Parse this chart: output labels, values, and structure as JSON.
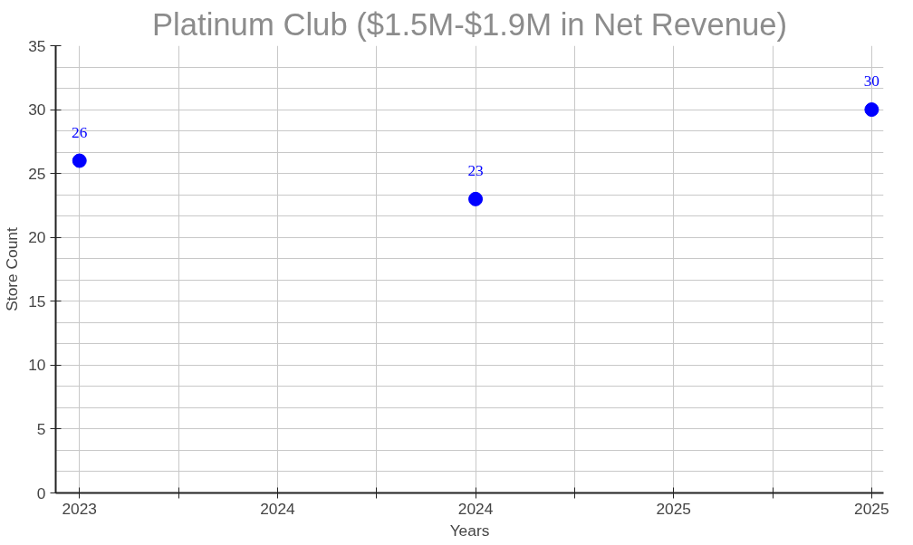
{
  "chart_data": {
    "type": "scatter",
    "title": "Platinum Club ($1.5M-$1.9M in Net Revenue)",
    "xlabel": "Years",
    "ylabel": "Store Count",
    "series": [
      {
        "color": "#0000ff",
        "x": [
          2023,
          2024,
          2025
        ],
        "values": [
          26,
          23,
          30
        ]
      }
    ],
    "data_labels": true,
    "marker": "circle",
    "grid": true,
    "xlim": [
      2022.94,
      2025.03
    ],
    "ylim": [
      0,
      35
    ],
    "xticks": [
      {
        "value": 2023,
        "label": "2023"
      },
      {
        "value": 2023.25,
        "label": null
      },
      {
        "value": 2023.5,
        "label": "2024"
      },
      {
        "value": 2023.75,
        "label": null
      },
      {
        "value": 2024,
        "label": "2024"
      },
      {
        "value": 2024.25,
        "label": null
      },
      {
        "value": 2024.5,
        "label": "2025"
      },
      {
        "value": 2024.75,
        "label": null
      },
      {
        "value": 2025,
        "label": "2025"
      }
    ],
    "yticks": [
      0,
      5,
      10,
      15,
      20,
      25,
      30,
      35
    ]
  }
}
